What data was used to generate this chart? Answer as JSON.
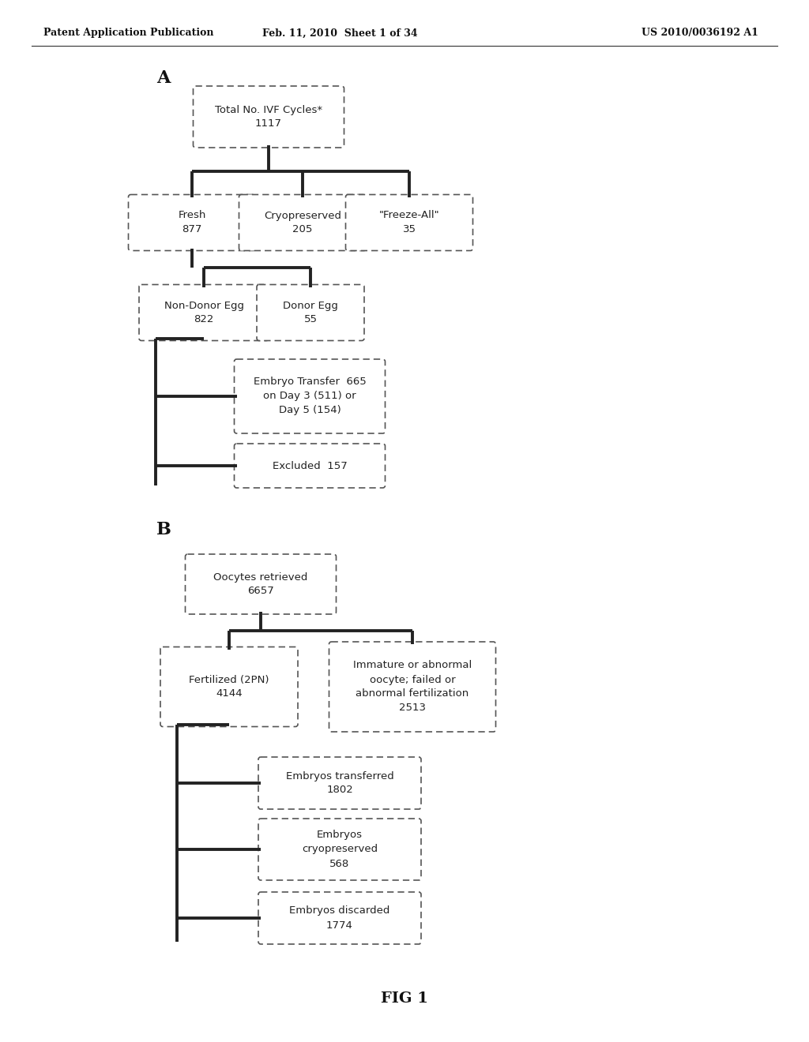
{
  "header_left": "Patent Application Publication",
  "header_mid": "Feb. 11, 2010  Sheet 1 of 34",
  "header_right": "US 2010/0036192 A1",
  "fig_label": "FIG 1",
  "section_A_label": "A",
  "section_B_label": "B",
  "bg_color": "#ffffff",
  "text_color": "#222222",
  "line_color": "#222222",
  "box_edge_color": "#555555"
}
